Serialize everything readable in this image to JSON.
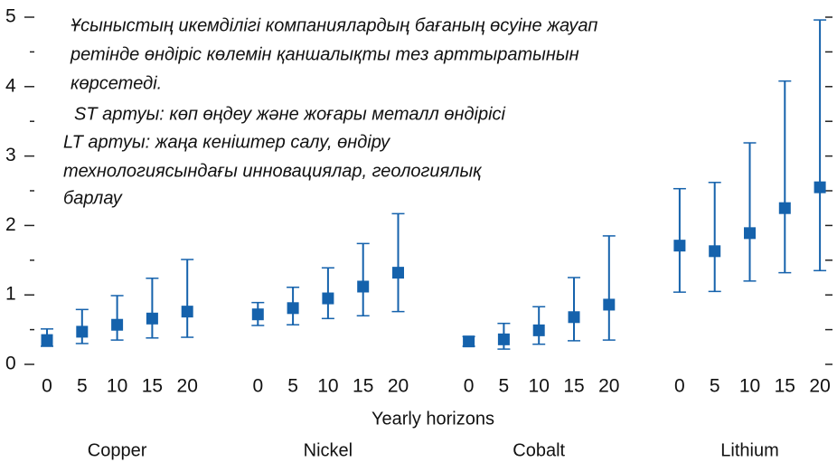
{
  "chart_data": {
    "type": "errorbar",
    "annotation": [
      "Ұсыныстың икемділігі компаниялардың бағаның өсуіне жауап",
      "ретінде өндіріс көлемін қаншалықты тез арттыратынын",
      "көрсетеді.",
      "ST артуы: көп өңдеу және жоғары металл өндірісі",
      "LT артуы: жаңа кеніштер салу, өндіру",
      "технологиясындағы инновациялар, геологиялық",
      "барлау"
    ],
    "x_label": "Yearly horizons",
    "categories": [
      "0",
      "5",
      "10",
      "15",
      "20"
    ],
    "series": [
      {
        "name": "Copper",
        "color": "#1562ac",
        "values": [
          0.35,
          0.47,
          0.57,
          0.66,
          0.76
        ],
        "upper": [
          0.51,
          0.79,
          0.99,
          1.24,
          1.51
        ],
        "lower": [
          0.26,
          0.3,
          0.35,
          0.38,
          0.39
        ]
      },
      {
        "name": "Nickel",
        "color": "#1562ac",
        "values": [
          0.72,
          0.81,
          0.95,
          1.12,
          1.32
        ],
        "upper": [
          0.89,
          1.11,
          1.39,
          1.74,
          2.17
        ],
        "lower": [
          0.56,
          0.57,
          0.66,
          0.7,
          0.76
        ]
      },
      {
        "name": "Cobalt",
        "color": "#1562ac",
        "values": [
          0.33,
          0.36,
          0.49,
          0.68,
          0.86
        ],
        "upper": [
          0.4,
          0.59,
          0.83,
          1.25,
          1.85
        ],
        "lower": [
          0.26,
          0.22,
          0.29,
          0.34,
          0.35
        ]
      },
      {
        "name": "Lithium",
        "color": "#1562ac",
        "values": [
          1.71,
          1.63,
          1.89,
          2.25,
          2.55
        ],
        "upper": [
          2.53,
          2.62,
          3.19,
          4.08,
          4.96
        ],
        "lower": [
          1.04,
          1.05,
          1.2,
          1.32,
          1.35
        ]
      }
    ],
    "ylim": [
      0,
      5
    ],
    "yticks": [
      0,
      1,
      2,
      3,
      4,
      5
    ],
    "yminorticks": [
      0.5,
      1.5,
      2.5,
      3.5,
      4.5
    ]
  }
}
